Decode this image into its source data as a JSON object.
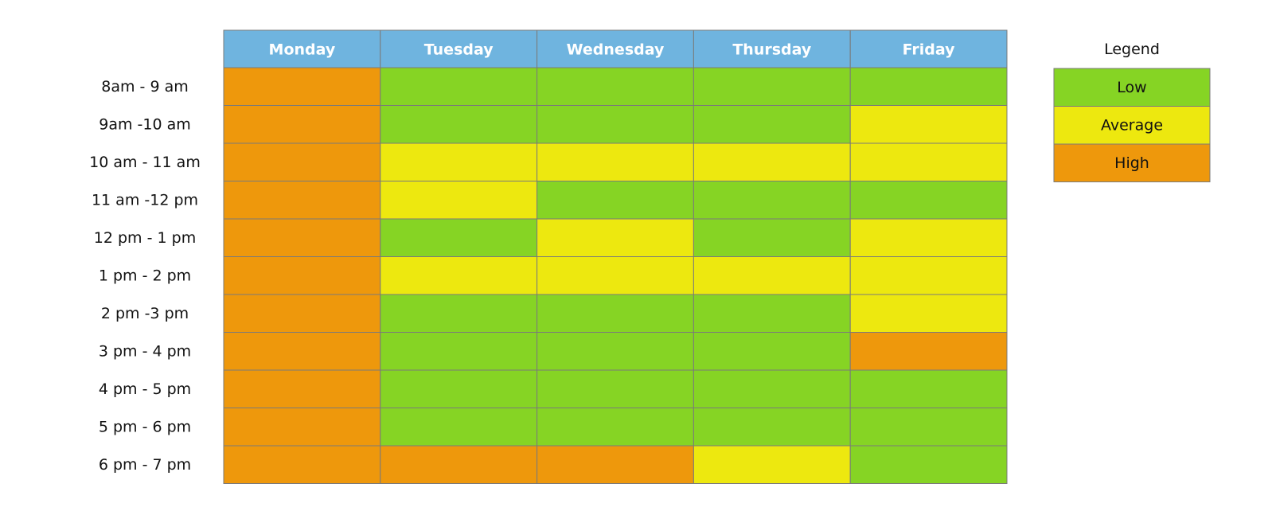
{
  "chart_data": {
    "type": "heatmap",
    "columns": [
      "Monday",
      "Tuesday",
      "Wednesday",
      "Thursday",
      "Friday"
    ],
    "rows": [
      "8am - 9 am",
      "9am -10 am",
      "10 am - 11 am",
      "11 am -12 pm",
      "12 pm - 1 pm",
      "1 pm - 2 pm",
      "2 pm -3 pm",
      "3 pm - 4 pm",
      "4 pm - 5 pm",
      "5 pm - 6 pm",
      "6 pm - 7 pm"
    ],
    "values": [
      [
        "High",
        "Low",
        "Low",
        "Low",
        "Low"
      ],
      [
        "High",
        "Low",
        "Low",
        "Low",
        "Average"
      ],
      [
        "High",
        "Average",
        "Average",
        "Average",
        "Average"
      ],
      [
        "High",
        "Average",
        "Low",
        "Low",
        "Low"
      ],
      [
        "High",
        "Low",
        "Average",
        "Low",
        "Average"
      ],
      [
        "High",
        "Average",
        "Average",
        "Average",
        "Average"
      ],
      [
        "High",
        "Low",
        "Low",
        "Low",
        "Average"
      ],
      [
        "High",
        "Low",
        "Low",
        "Low",
        "High"
      ],
      [
        "High",
        "Low",
        "Low",
        "Low",
        "Low"
      ],
      [
        "High",
        "Low",
        "Low",
        "Low",
        "Low"
      ],
      [
        "High",
        "High",
        "High",
        "Average",
        "Low"
      ]
    ],
    "legend": {
      "title": "Legend",
      "placement": "right",
      "levels": [
        {
          "label": "Low",
          "color": "#86d424"
        },
        {
          "label": "Average",
          "color": "#ede80f"
        },
        {
          "label": "High",
          "color": "#ee980c"
        }
      ]
    },
    "header_color": "#6fb4df"
  }
}
